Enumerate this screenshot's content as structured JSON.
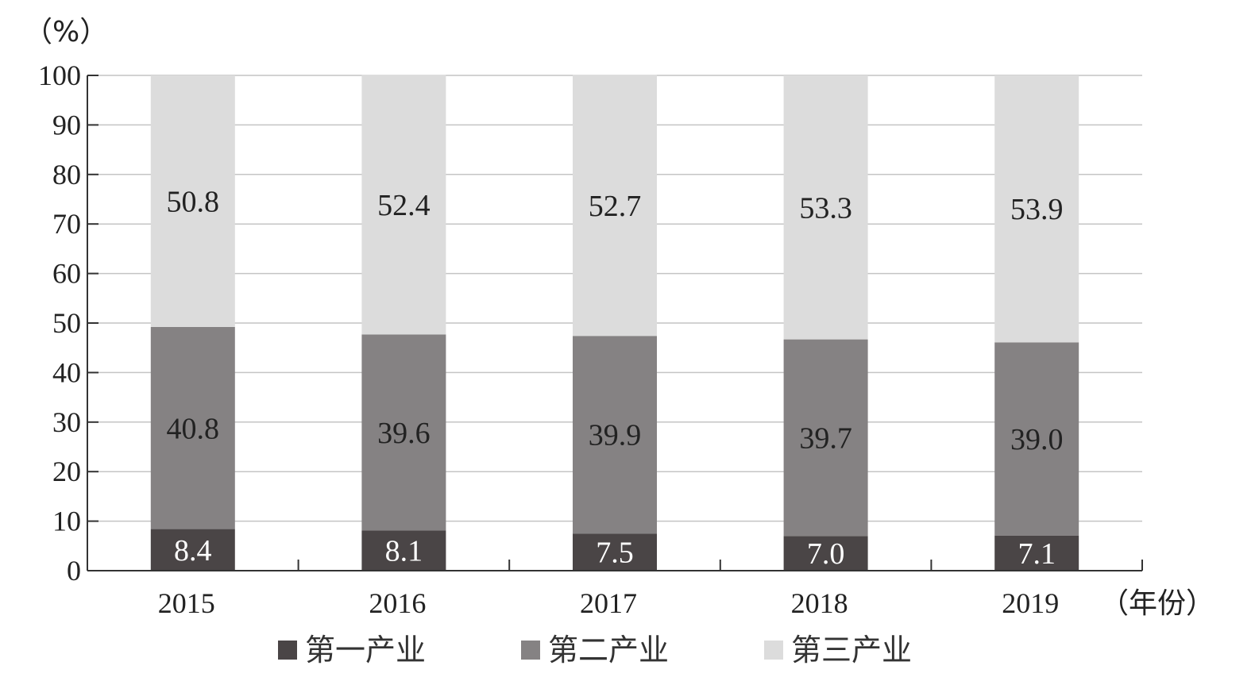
{
  "chart_data": {
    "type": "bar",
    "stacked": true,
    "categories": [
      "2015",
      "2016",
      "2017",
      "2018",
      "2019"
    ],
    "series": [
      {
        "name": "第一产业",
        "values": [
          8.4,
          8.1,
          7.5,
          7.0,
          7.1
        ],
        "color": "#4a4546",
        "label_color": "#ffffff"
      },
      {
        "name": "第二产业",
        "values": [
          40.8,
          39.6,
          39.9,
          39.7,
          39.0
        ],
        "color": "#858283",
        "label_color": "#222222"
      },
      {
        "name": "第三产业",
        "values": [
          50.8,
          52.4,
          52.7,
          53.3,
          53.9
        ],
        "color": "#dcdcdc",
        "label_color": "#222222"
      }
    ],
    "ylabel": "（%）",
    "xlabel": "（年份）",
    "ylim": [
      0,
      100
    ],
    "yticks": [
      0,
      10,
      20,
      30,
      40,
      50,
      60,
      70,
      80,
      90,
      100
    ],
    "grid": true,
    "legend_position": "bottom"
  }
}
